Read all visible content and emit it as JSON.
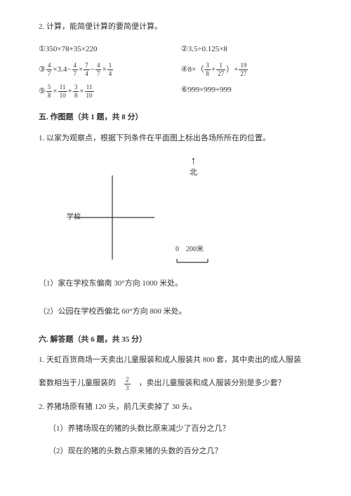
{
  "intro": "2. 计算，能简便计算的要简便计算。",
  "pairs": [
    {
      "left_plain": "①350×78+35×220",
      "right_plain": "②3.5÷0.125×8"
    },
    {
      "left_frac": {
        "pre": "③ ",
        "seq": [
          [
            "4",
            "7"
          ],
          " ×3.4− ",
          [
            "4",
            "7"
          ],
          " × ",
          [
            "7",
            "4"
          ],
          " − ",
          [
            "4",
            "7"
          ],
          " × ",
          [
            "1",
            "4"
          ]
        ]
      },
      "right_frac": {
        "pre": "④8×（ ",
        "seq": [
          [
            "3",
            "8"
          ],
          " + ",
          [
            "1",
            "27"
          ],
          " ）+ ",
          [
            "19",
            "27"
          ]
        ]
      }
    },
    {
      "left_frac": {
        "pre": "⑤ ",
        "seq": [
          [
            "5",
            "8"
          ],
          " × ",
          [
            "11",
            "10"
          ],
          " + ",
          [
            "3",
            "8"
          ],
          " × ",
          [
            "11",
            "10"
          ]
        ]
      },
      "right_plain": "⑥999×999+999"
    }
  ],
  "section5": {
    "title": "五. 作图题（共 1 题，共 8 分）",
    "q1": "1. 以家为观察点，根据下列条件在平面图上标出各场所所在的位置。",
    "north": "北",
    "school": "学校",
    "scale_zero": "0",
    "scale_label": "200米",
    "sub1": "（1）家在学校东偏南 30°方向 1000 米处。",
    "sub2": "（2）公园在学校西偏北 60°方向 800 米处。"
  },
  "section6": {
    "title": "六. 解答题（共 6 题，共 35 分）",
    "q1a": "1. 天虹百货商场一天卖出儿童服装和成人服装共 800 套，其中卖出的成人服装",
    "q1b_pre": "套数相当于儿童服装的　",
    "q1b_frac_n": "2",
    "q1b_frac_d": "3",
    "q1b_post": "　，卖出儿童服装和成人服装分别是多少套？",
    "q2": "2. 养猪场原有猪 120 头，前几天卖掉了 30 头。",
    "q2_1": "（1）养猪场现在的猪的头数比原来减少了百分之几？",
    "q2_2": "（2）现在的猪的头数占原来猪的头数的百分之几？"
  }
}
